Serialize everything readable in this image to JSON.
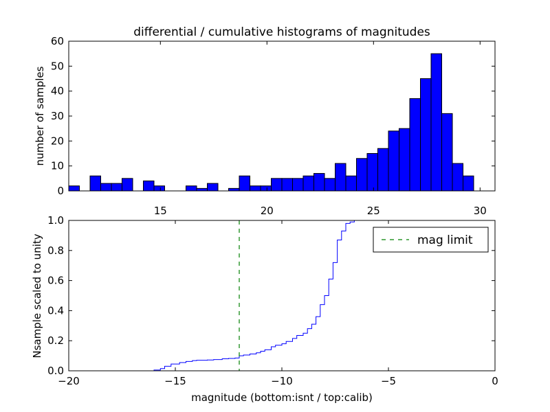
{
  "chart_data": [
    {
      "type": "bar",
      "title": "differential / cumulative histograms of magnitudes",
      "xlabel": "",
      "ylabel": "number of samples",
      "xlim": [
        10.7,
        30.7
      ],
      "ylim": [
        0,
        60
      ],
      "x_ticks": [
        "15",
        "20",
        "25",
        "30"
      ],
      "x_tick_values": [
        15,
        20,
        25,
        30
      ],
      "y_ticks": [
        "0",
        "10",
        "20",
        "30",
        "40",
        "50",
        "60"
      ],
      "y_tick_values": [
        0,
        10,
        20,
        30,
        40,
        50,
        60
      ],
      "bar_color": "#0000ff",
      "bin_start": 10.7,
      "bin_width": 0.5,
      "values": [
        2,
        0,
        6,
        3,
        3,
        5,
        0,
        4,
        2,
        0,
        0,
        2,
        1,
        3,
        0,
        1,
        6,
        2,
        2,
        5,
        5,
        5,
        6,
        7,
        5,
        11,
        6,
        13,
        15,
        17,
        24,
        25,
        37,
        45,
        55,
        31,
        11,
        6
      ]
    },
    {
      "type": "line",
      "title": "",
      "xlabel": "magnitude (bottom:isnt / top:calib)",
      "ylabel": "Nsample scaled to unity",
      "xlim": [
        -20,
        0
      ],
      "ylim": [
        0,
        1
      ],
      "x_ticks": [
        "−20",
        "−15",
        "−10",
        "−5",
        "0"
      ],
      "x_tick_values": [
        -20,
        -15,
        -10,
        -5,
        0
      ],
      "y_ticks": [
        "0.0",
        "0.2",
        "0.4",
        "0.6",
        "0.8",
        "1.0"
      ],
      "y_tick_values": [
        0,
        0.2,
        0.4,
        0.6,
        0.8,
        1.0
      ],
      "series": [
        {
          "name": "",
          "style": "step",
          "color": "#0000ff",
          "x": [
            -20,
            -16.0,
            -15.7,
            -15.5,
            -15.2,
            -14.8,
            -14.5,
            -14.2,
            -14.0,
            -13.5,
            -13.2,
            -12.8,
            -12.5,
            -12.2,
            -12.0,
            -11.8,
            -11.5,
            -11.2,
            -11.0,
            -10.8,
            -10.5,
            -10.3,
            -10.0,
            -9.8,
            -9.5,
            -9.3,
            -9.0,
            -8.8,
            -8.6,
            -8.4,
            -8.2,
            -8.0,
            -7.8,
            -7.6,
            -7.4,
            -7.2,
            -7.0,
            -6.8,
            -6.6
          ],
          "y": [
            0,
            0.005,
            0.015,
            0.03,
            0.045,
            0.055,
            0.062,
            0.068,
            0.07,
            0.072,
            0.075,
            0.08,
            0.082,
            0.085,
            0.1,
            0.105,
            0.112,
            0.12,
            0.13,
            0.14,
            0.16,
            0.17,
            0.18,
            0.195,
            0.215,
            0.235,
            0.25,
            0.28,
            0.31,
            0.36,
            0.44,
            0.5,
            0.61,
            0.72,
            0.87,
            0.93,
            0.98,
            0.99,
            1.0
          ]
        }
      ],
      "vline": {
        "x": -12,
        "color": "#008000",
        "label": "mag limit",
        "style": "dashed"
      },
      "legend": {
        "position": "top-right",
        "label": "mag limit"
      }
    }
  ]
}
